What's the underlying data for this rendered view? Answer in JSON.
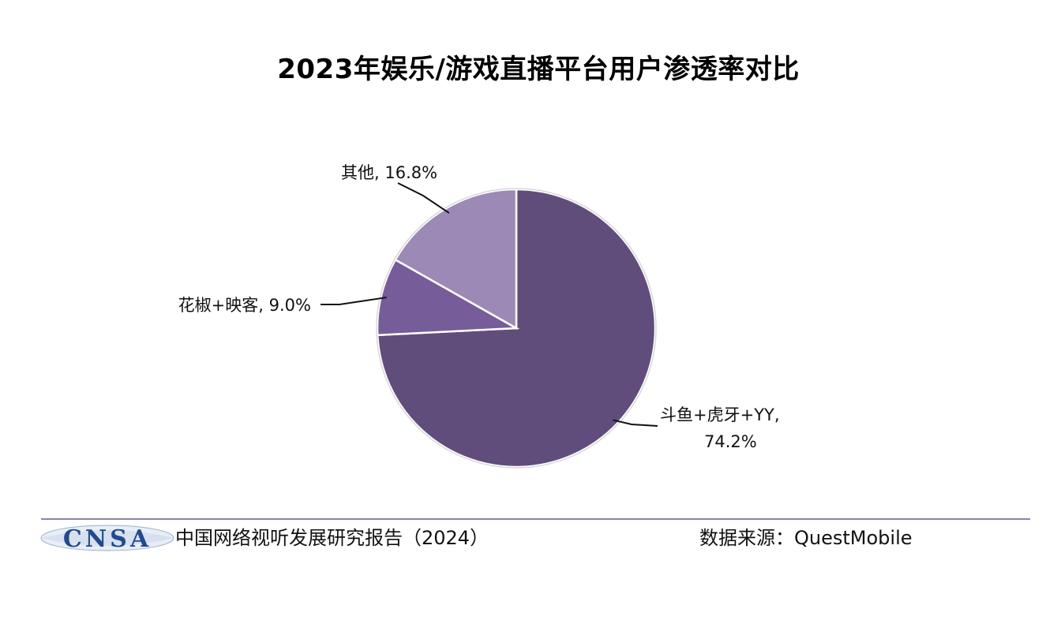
{
  "chart_data": {
    "type": "pie",
    "title": "2023年娱乐/游戏直播平台用户渗透率对比",
    "slices": [
      {
        "name": "斗鱼+虎牙+YY",
        "value": 74.2,
        "value_label": "74.2%",
        "color": "#614d7c"
      },
      {
        "name": "花椒+映客",
        "value": 9.0,
        "value_label": "9.0%",
        "color": "#765d99"
      },
      {
        "name": "其他",
        "value": 16.8,
        "value_label": "16.8%",
        "color": "#9c89b5"
      }
    ],
    "start_angle_deg": 0,
    "direction": "clockwise",
    "legend": "none"
  },
  "footer": {
    "logo_text": "CNSA",
    "report_name": "中国网络视听发展研究报告（2024）",
    "source": "数据来源：QuestMobile"
  }
}
